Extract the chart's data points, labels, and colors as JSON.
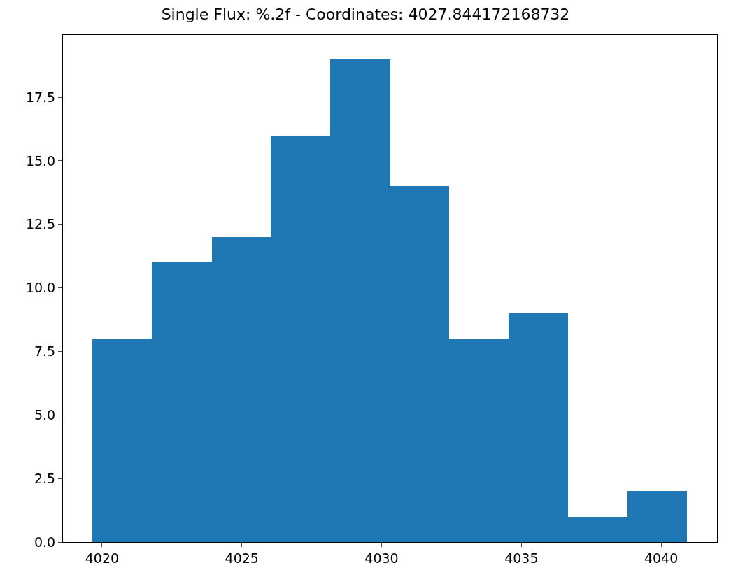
{
  "chart_data": {
    "type": "histogram",
    "title": "Single Flux: %.2f - Coordinates: 4027.844172168732",
    "bins": [
      4019.66,
      4021.79,
      4023.92,
      4026.04,
      4028.17,
      4030.3,
      4032.42,
      4034.55,
      4036.68,
      4038.8,
      4040.93
    ],
    "values": [
      8,
      11,
      12,
      16,
      19,
      14,
      8,
      9,
      1,
      2
    ],
    "color": "#1f77b4",
    "xlim": [
      4018.6,
      4042.0
    ],
    "xticks": [
      4020,
      4025,
      4030,
      4035,
      4040
    ],
    "ylim": [
      0,
      19.95
    ],
    "yticks": [
      {
        "value": 0,
        "label": "0.0"
      },
      {
        "value": 2.5,
        "label": "2.5"
      },
      {
        "value": 5,
        "label": "5.0"
      },
      {
        "value": 7.5,
        "label": "7.5"
      },
      {
        "value": 10,
        "label": "10.0"
      },
      {
        "value": 12.5,
        "label": "12.5"
      },
      {
        "value": 15,
        "label": "15.0"
      },
      {
        "value": 17.5,
        "label": "17.5"
      }
    ]
  }
}
